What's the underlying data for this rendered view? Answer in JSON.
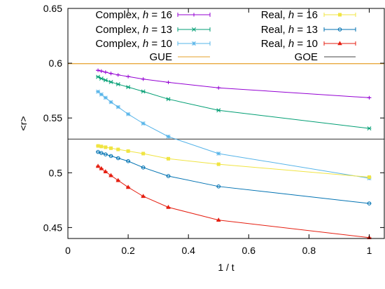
{
  "chart_data": {
    "type": "line",
    "xlabel": "1 / t",
    "ylabel": "<r>",
    "xlim": [
      0,
      1.05
    ],
    "ylim": [
      0.44,
      0.65
    ],
    "xticks": [
      "0",
      "0.2",
      "0.4",
      "0.6",
      "0.8",
      "1"
    ],
    "xtick_values": [
      0,
      0.2,
      0.4,
      0.6,
      0.8,
      1
    ],
    "yticks": [
      "0.45",
      "0.5",
      "0.55",
      "0.6",
      "0.65"
    ],
    "ytick_values": [
      0.45,
      0.5,
      0.55,
      0.6,
      0.65
    ],
    "grid": false,
    "legend_placement": "top",
    "series": [
      {
        "name": "Complex, h = 16",
        "color": "#9400d3",
        "marker": "plus",
        "x": [
          0.1,
          0.1111,
          0.125,
          0.1429,
          0.1667,
          0.2,
          0.25,
          0.3333,
          0.5,
          1.0
        ],
        "y": [
          0.5935,
          0.5928,
          0.5918,
          0.5906,
          0.5893,
          0.5878,
          0.5855,
          0.5825,
          0.5775,
          0.5685
        ]
      },
      {
        "name": "Complex, h = 13",
        "color": "#009e73",
        "marker": "cross",
        "x": [
          0.1,
          0.1111,
          0.125,
          0.1429,
          0.1667,
          0.2,
          0.25,
          0.3333,
          0.5,
          1.0
        ],
        "y": [
          0.5875,
          0.586,
          0.5845,
          0.5828,
          0.5808,
          0.5782,
          0.5742,
          0.5672,
          0.557,
          0.5405
        ]
      },
      {
        "name": "Complex, h = 10",
        "color": "#56b4e9",
        "marker": "star",
        "x": [
          0.1,
          0.1111,
          0.125,
          0.1429,
          0.1667,
          0.2,
          0.25,
          0.3333,
          0.5,
          1.0
        ],
        "y": [
          0.574,
          0.5715,
          0.5685,
          0.5645,
          0.56,
          0.5535,
          0.545,
          0.533,
          0.5175,
          0.495
        ]
      },
      {
        "name": "Real, h = 16",
        "color": "#f0e442",
        "marker": "square",
        "x": [
          0.1,
          0.1111,
          0.125,
          0.1429,
          0.1667,
          0.2,
          0.25,
          0.3333,
          0.5,
          1.0
        ],
        "y": [
          0.5245,
          0.524,
          0.5233,
          0.5224,
          0.5213,
          0.5198,
          0.5175,
          0.5128,
          0.5078,
          0.496
        ]
      },
      {
        "name": "Real, h = 13",
        "color": "#0072b2",
        "marker": "circle",
        "x": [
          0.1,
          0.1111,
          0.125,
          0.1429,
          0.1667,
          0.2,
          0.25,
          0.3333,
          0.5,
          1.0
        ],
        "y": [
          0.519,
          0.518,
          0.5168,
          0.5153,
          0.5133,
          0.5106,
          0.5048,
          0.497,
          0.4875,
          0.472
        ]
      },
      {
        "name": "Real, h = 10",
        "color": "#e51e10",
        "marker": "triangle",
        "x": [
          0.1,
          0.1111,
          0.125,
          0.1429,
          0.1667,
          0.2,
          0.25,
          0.3333,
          0.5,
          1.0
        ],
        "y": [
          0.506,
          0.5038,
          0.501,
          0.4975,
          0.493,
          0.4868,
          0.4785,
          0.4685,
          0.4568,
          0.4408
        ]
      }
    ],
    "reference_lines": [
      {
        "name": "GUE",
        "y": 0.5996,
        "color": "#e6a12a"
      },
      {
        "name": "GOE",
        "y": 0.5307,
        "color": "#444444"
      }
    ]
  }
}
